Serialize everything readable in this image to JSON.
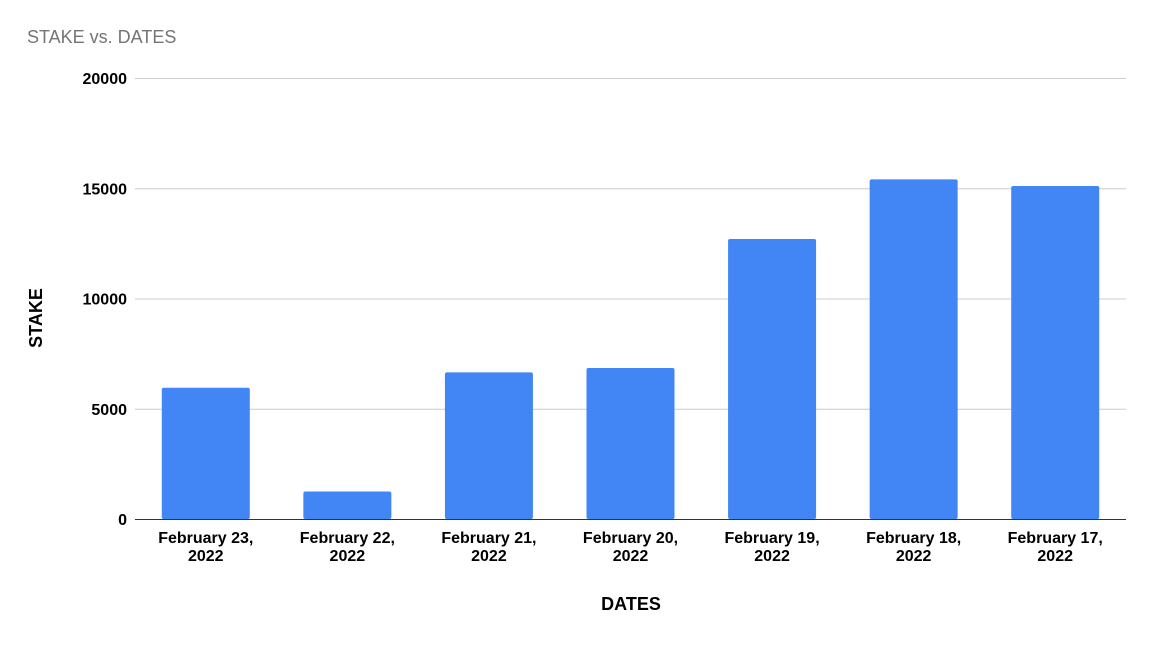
{
  "chart_data": {
    "type": "bar",
    "title": "STAKE vs. DATES",
    "xlabel": "DATES",
    "ylabel": "STAKE",
    "categories": [
      [
        "February 23,",
        "2022"
      ],
      [
        "February 22,",
        "2022"
      ],
      [
        "February 21,",
        "2022"
      ],
      [
        "February 20,",
        "2022"
      ],
      [
        "February 19,",
        "2022"
      ],
      [
        "February 18,",
        "2022"
      ],
      [
        "February 17,",
        "2022"
      ]
    ],
    "values": [
      5950,
      1250,
      6650,
      6850,
      12700,
      15400,
      15100
    ],
    "ylim": [
      0,
      20000
    ],
    "yticks": [
      "0",
      "5000",
      "10000",
      "15000",
      "20000"
    ],
    "grid": true,
    "legend": "none",
    "colors": {
      "bar": "#4285f4"
    }
  }
}
